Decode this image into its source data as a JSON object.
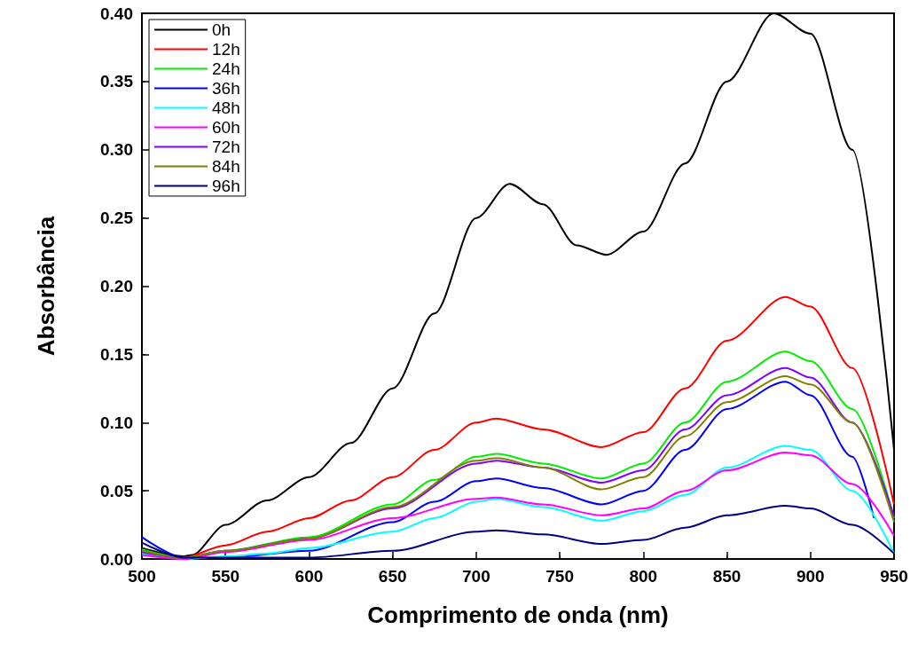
{
  "chart_data": {
    "type": "line",
    "xlabel": "Comprimento de onda (nm)",
    "ylabel": "Absorbância",
    "xlim": [
      500,
      950
    ],
    "xticks": [
      500,
      550,
      600,
      650,
      700,
      750,
      800,
      850,
      900,
      950
    ],
    "ylim": [
      0,
      0.4
    ],
    "yticks": [
      {
        "value": 0,
        "label": "0.00"
      },
      {
        "value": 0.05,
        "label": "0.05"
      },
      {
        "value": 0.1,
        "label": "0.10"
      },
      {
        "value": 0.15,
        "label": "0.15"
      },
      {
        "value": 0.2,
        "label": "0.20"
      },
      {
        "value": 0.25,
        "label": "0.25"
      },
      {
        "value": 0.3,
        "label": "0.30"
      },
      {
        "value": 0.35,
        "label": "0.35"
      },
      {
        "value": 0.4,
        "label": "0.40"
      }
    ],
    "grid": false,
    "legend": "top left",
    "marker": "none",
    "line_style": "solid",
    "series": [
      {
        "name": "0h",
        "color": "#000000",
        "x": [
          500,
          525,
          530,
          550,
          575,
          600,
          625,
          650,
          675,
          700,
          720,
          740,
          760,
          778,
          800,
          825,
          850,
          878,
          900,
          925,
          950
        ],
        "values": [
          0.008,
          0.002,
          0.003,
          0.025,
          0.043,
          0.06,
          0.085,
          0.125,
          0.18,
          0.25,
          0.275,
          0.26,
          0.23,
          0.223,
          0.24,
          0.29,
          0.35,
          0.4,
          0.385,
          0.3,
          0.08
        ]
      },
      {
        "name": "12h",
        "color": "#ff0000",
        "x": [
          500,
          525,
          550,
          575,
          600,
          625,
          650,
          675,
          700,
          712,
          740,
          775,
          800,
          825,
          850,
          885,
          900,
          925,
          950
        ],
        "values": [
          0.004,
          0.001,
          0.01,
          0.02,
          0.03,
          0.043,
          0.06,
          0.08,
          0.1,
          0.103,
          0.095,
          0.082,
          0.093,
          0.125,
          0.16,
          0.192,
          0.185,
          0.14,
          0.04
        ]
      },
      {
        "name": "24h",
        "color": "#00ee00",
        "x": [
          500,
          525,
          550,
          600,
          650,
          675,
          700,
          712,
          740,
          775,
          800,
          825,
          850,
          885,
          900,
          925,
          950
        ],
        "values": [
          0.007,
          0.001,
          0.006,
          0.016,
          0.04,
          0.058,
          0.075,
          0.077,
          0.07,
          0.059,
          0.07,
          0.1,
          0.13,
          0.152,
          0.145,
          0.11,
          0.03
        ]
      },
      {
        "name": "36h",
        "color": "#0000ff",
        "x": [
          500,
          525,
          550,
          600,
          650,
          675,
          700,
          712,
          740,
          775,
          800,
          825,
          850,
          885,
          900,
          925,
          938
        ],
        "values": [
          0.016,
          0.001,
          0.001,
          0.006,
          0.027,
          0.042,
          0.057,
          0.059,
          0.052,
          0.04,
          0.05,
          0.08,
          0.11,
          0.13,
          0.12,
          0.075,
          0.03
        ]
      },
      {
        "name": "48h",
        "color": "#00ffff",
        "x": [
          500,
          525,
          550,
          575,
          600,
          650,
          675,
          700,
          712,
          740,
          775,
          800,
          825,
          850,
          885,
          900,
          925,
          950
        ],
        "values": [
          0.004,
          0,
          0.002,
          0.004,
          0.008,
          0.02,
          0.03,
          0.042,
          0.044,
          0.038,
          0.028,
          0.035,
          0.047,
          0.067,
          0.083,
          0.08,
          0.05,
          0.004
        ]
      },
      {
        "name": "60h",
        "color": "#ff00ff",
        "x": [
          500,
          525,
          550,
          600,
          650,
          700,
          712,
          740,
          775,
          800,
          825,
          850,
          885,
          900,
          925,
          950
        ],
        "values": [
          0.003,
          0,
          0.005,
          0.014,
          0.03,
          0.044,
          0.045,
          0.04,
          0.032,
          0.037,
          0.05,
          0.065,
          0.078,
          0.076,
          0.055,
          0.017
        ]
      },
      {
        "name": "72h",
        "color": "#8000ff",
        "x": [
          500,
          525,
          550,
          600,
          650,
          700,
          712,
          740,
          775,
          800,
          825,
          850,
          885,
          900,
          925,
          950
        ],
        "values": [
          0.005,
          0.001,
          0.006,
          0.015,
          0.037,
          0.07,
          0.072,
          0.067,
          0.056,
          0.065,
          0.095,
          0.12,
          0.14,
          0.133,
          0.1,
          0.031
        ]
      },
      {
        "name": "84h",
        "color": "#808000",
        "x": [
          500,
          525,
          550,
          600,
          650,
          700,
          712,
          740,
          775,
          800,
          825,
          850,
          885,
          900,
          925,
          950
        ],
        "values": [
          0.006,
          0.001,
          0.006,
          0.015,
          0.038,
          0.072,
          0.074,
          0.067,
          0.051,
          0.06,
          0.09,
          0.115,
          0.134,
          0.128,
          0.1,
          0.027
        ]
      },
      {
        "name": "96h",
        "color": "#000080",
        "x": [
          500,
          525,
          550,
          600,
          650,
          700,
          712,
          740,
          775,
          800,
          825,
          850,
          885,
          900,
          925,
          950
        ],
        "values": [
          0.012,
          0.001,
          0.001,
          0.001,
          0.006,
          0.02,
          0.021,
          0.018,
          0.011,
          0.014,
          0.023,
          0.032,
          0.039,
          0.037,
          0.025,
          0.004
        ]
      }
    ]
  }
}
